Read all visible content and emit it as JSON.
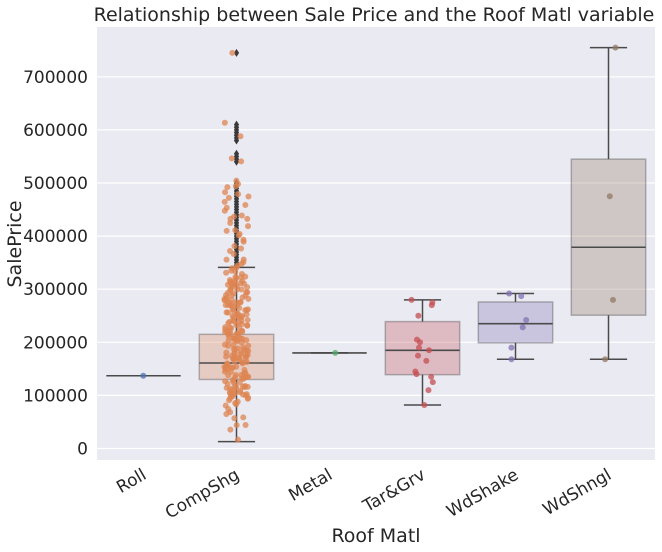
{
  "chart_data": {
    "type": "box",
    "title": "Relationship between Sale Price and the Roof Matl variable",
    "xlabel": "Roof Matl",
    "ylabel": "SalePrice",
    "ylim": [
      -20000,
      780000
    ],
    "yticks": [
      0,
      100000,
      200000,
      300000,
      400000,
      500000,
      600000,
      700000
    ],
    "grid": true,
    "categories": [
      "Roll",
      "CompShg",
      "Metal",
      "Tar&Grv",
      "WdShake",
      "WdShngl"
    ],
    "colors": [
      "#4c72b0",
      "#dd8452",
      "#55a868",
      "#c44e52",
      "#8172b3",
      "#937860"
    ],
    "boxes": [
      {
        "category": "Roll",
        "min": 137000,
        "q1": 137000,
        "median": 137000,
        "q3": 137000,
        "max": 137000,
        "outliers": []
      },
      {
        "category": "CompShg",
        "min": 13000,
        "q1": 130000,
        "median": 161000,
        "q3": 215000,
        "max": 341000,
        "outliers": [
          345000,
          350000,
          355000,
          360000,
          365000,
          370000,
          375000,
          380000,
          385000,
          390000,
          395000,
          400000,
          405000,
          410000,
          415000,
          420000,
          425000,
          430000,
          435000,
          440000,
          445000,
          450000,
          455000,
          460000,
          465000,
          470000,
          475000,
          480000,
          485000,
          490000,
          495000,
          500000,
          540000,
          545000,
          550000,
          555000,
          580000,
          585000,
          590000,
          595000,
          600000,
          605000,
          610000,
          745000
        ]
      },
      {
        "category": "Metal",
        "min": 180000,
        "q1": 180000,
        "median": 180000,
        "q3": 180000,
        "max": 180000,
        "outliers": []
      },
      {
        "category": "Tar&Grv",
        "min": 82000,
        "q1": 139000,
        "median": 185000,
        "q3": 239000,
        "max": 280000,
        "outliers": []
      },
      {
        "category": "WdShake",
        "min": 168000,
        "q1": 199000,
        "median": 235000,
        "q3": 276000,
        "max": 292000,
        "outliers": []
      },
      {
        "category": "WdShngl",
        "min": 168000,
        "q1": 251000,
        "median": 379000,
        "q3": 545000,
        "max": 755000,
        "outliers": []
      }
    ],
    "points": {
      "Roll": [
        137000
      ],
      "Metal": [
        180000
      ],
      "Tar&Grv": [
        82000,
        110000,
        125000,
        135000,
        140000,
        145000,
        165000,
        175000,
        185000,
        190000,
        200000,
        205000,
        250000,
        270000,
        275000,
        280000
      ],
      "WdShake": [
        168000,
        190000,
        228000,
        242000,
        287000,
        292000
      ],
      "WdShngl": [
        168000,
        280000,
        475000,
        755000
      ],
      "CompShg": [
        13000,
        35000,
        40000,
        45000,
        55000,
        60000,
        65000,
        70000,
        75000,
        80000,
        85000,
        90000,
        95000,
        100000,
        105000,
        110000,
        115000,
        120000,
        125000,
        130000,
        135000,
        140000,
        145000,
        150000,
        155000,
        160000,
        165000,
        170000,
        175000,
        180000,
        185000,
        190000,
        195000,
        200000,
        205000,
        210000,
        215000,
        220000,
        225000,
        230000,
        235000,
        240000,
        245000,
        250000,
        255000,
        260000,
        265000,
        270000,
        275000,
        280000,
        285000,
        290000,
        295000,
        300000,
        305000,
        310000,
        315000,
        320000,
        325000,
        330000,
        335000,
        340000,
        350000,
        360000,
        370000,
        380000,
        390000,
        400000,
        410000,
        420000,
        430000,
        440000,
        450000,
        460000,
        470000,
        480000,
        490000,
        500000,
        545000,
        550000,
        590000,
        610000,
        745000
      ]
    }
  }
}
